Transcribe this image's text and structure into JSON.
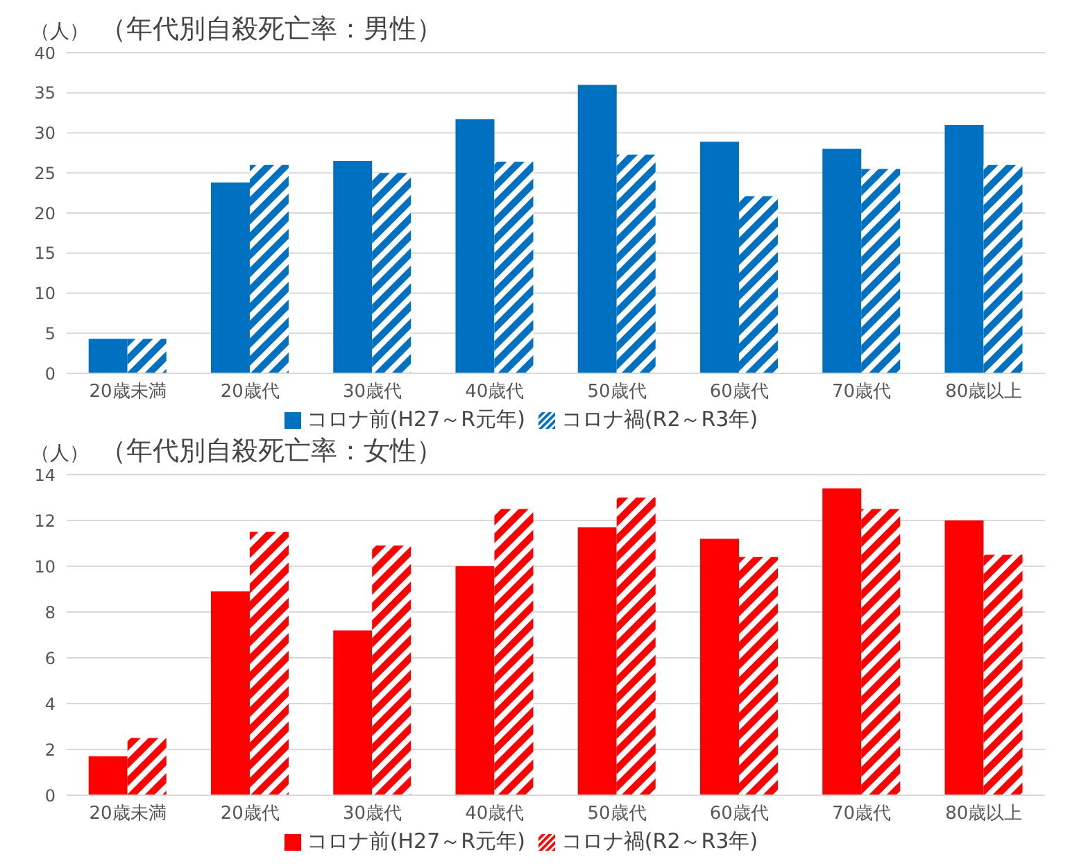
{
  "chart_data": [
    {
      "type": "bar",
      "title": "（年代別自殺死亡率：男性）",
      "ylabel": "（人）",
      "categories": [
        "20歳未満",
        "20歳代",
        "30歳代",
        "40歳代",
        "50歳代",
        "60歳代",
        "70歳代",
        "80歳以上"
      ],
      "series": [
        {
          "name": "コロナ前(H27～R元年)",
          "color": "#0070c0",
          "values": [
            4.3,
            23.8,
            26.5,
            31.7,
            36,
            28.9,
            28,
            31
          ]
        },
        {
          "name": "コロナ禍(R2～R3年)",
          "color": "#0070c0",
          "values": [
            4.3,
            26,
            25,
            26.4,
            27.3,
            22.1,
            25.5,
            26
          ]
        }
      ],
      "ylim": [
        0,
        40
      ],
      "yticks": [
        0,
        5,
        10,
        15,
        20,
        25,
        30,
        35,
        40
      ],
      "grid": "y",
      "legend": "bottom"
    },
    {
      "type": "bar",
      "title": "（年代別自殺死亡率：女性）",
      "ylabel": "（人）",
      "categories": [
        "20歳未満",
        "20歳代",
        "30歳代",
        "40歳代",
        "50歳代",
        "60歳代",
        "70歳代",
        "80歳以上"
      ],
      "series": [
        {
          "name": "コロナ前(H27～R元年)",
          "color": "#ff0000",
          "values": [
            1.7,
            8.9,
            7.2,
            10,
            11.7,
            11.2,
            13.4,
            12
          ]
        },
        {
          "name": "コロナ禍(R2～R3年)",
          "color": "#ff0000",
          "values": [
            2.5,
            11.5,
            10.9,
            12.5,
            13,
            10.4,
            12.5,
            10.5
          ]
        }
      ],
      "ylim": [
        0,
        14
      ],
      "yticks": [
        0,
        2,
        4,
        6,
        8,
        10,
        12,
        14
      ],
      "grid": "y",
      "legend": "bottom"
    }
  ]
}
